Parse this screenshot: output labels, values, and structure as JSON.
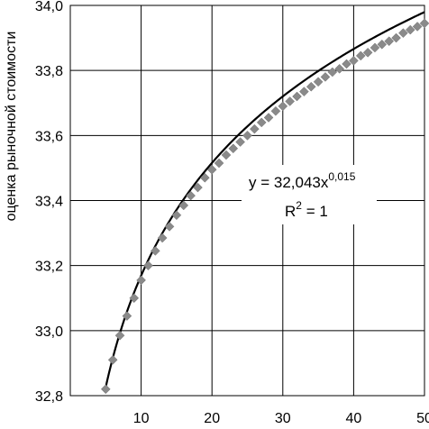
{
  "chart_data": {
    "type": "scatter",
    "title": "",
    "xlabel": "",
    "ylabel": "оценка рыночной стоимости",
    "xlim": [
      0,
      50
    ],
    "ylim": [
      32.8,
      34.0
    ],
    "x_ticks": [
      {
        "value": 10,
        "label": "10"
      },
      {
        "value": 20,
        "label": "20"
      },
      {
        "value": 30,
        "label": "30"
      },
      {
        "value": 40,
        "label": "40"
      },
      {
        "value": 50,
        "label": "50"
      }
    ],
    "y_ticks": [
      {
        "value": 32.8,
        "label": "32,8"
      },
      {
        "value": 33.0,
        "label": "33,0"
      },
      {
        "value": 33.2,
        "label": "33,2"
      },
      {
        "value": 33.4,
        "label": "33,4"
      },
      {
        "value": 33.6,
        "label": "33,6"
      },
      {
        "value": 33.8,
        "label": "33,8"
      },
      {
        "value": 34.0,
        "label": "34,0"
      }
    ],
    "grid": true,
    "series": [
      {
        "type": "scatter",
        "marker": "diamond",
        "color": "#8a8a8a",
        "x": [
          5,
          6,
          7,
          8,
          9,
          10,
          11,
          12,
          13,
          14,
          15,
          16,
          17,
          18,
          19,
          20,
          21,
          22,
          23,
          24,
          25,
          26,
          27,
          28,
          29,
          30,
          31,
          32,
          33,
          34,
          35,
          36,
          37,
          38,
          39,
          40,
          41,
          42,
          43,
          44,
          45,
          46,
          47,
          48,
          49,
          50
        ],
        "y": [
          32.82,
          32.91,
          32.985,
          33.045,
          33.1,
          33.155,
          33.2,
          33.245,
          33.285,
          33.32,
          33.355,
          33.385,
          33.415,
          33.44,
          33.47,
          33.495,
          33.515,
          33.54,
          33.56,
          33.58,
          33.6,
          33.62,
          33.64,
          33.655,
          33.675,
          33.69,
          33.705,
          33.72,
          33.735,
          33.75,
          33.765,
          33.78,
          33.795,
          33.805,
          33.82,
          33.83,
          33.845,
          33.855,
          33.87,
          33.88,
          33.89,
          33.9,
          33.915,
          33.925,
          33.935,
          33.945
        ]
      }
    ],
    "trendline": {
      "type": "power",
      "color": "#000000",
      "coef": 32.043,
      "exp": 0.015,
      "equation_main": "y = 32,043x",
      "equation_exp": "0,015",
      "r2_label": "R",
      "r2_sup": "2",
      "r2_value": " = 1"
    }
  }
}
